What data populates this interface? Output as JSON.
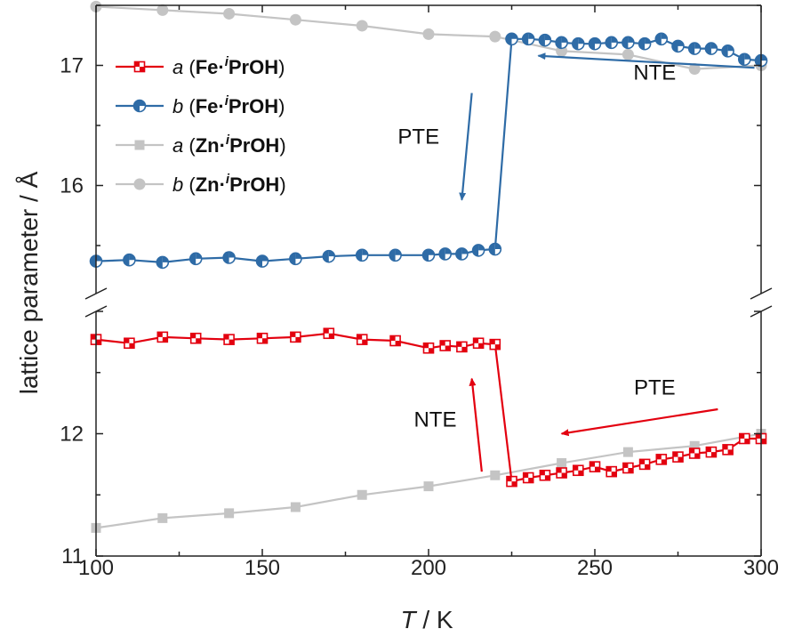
{
  "chart_data": {
    "type": "line",
    "xlabel_symbol": "T",
    "xlabel_unit": " / K",
    "ylabel": "lattice parameter / Å",
    "xlim": [
      100,
      300
    ],
    "xticks": [
      "100",
      "150",
      "200",
      "250",
      "300"
    ],
    "y_axis_break": true,
    "upper_panel": {
      "ylim": [
        15.1,
        17.5
      ],
      "yticks": [
        "16",
        "17"
      ]
    },
    "lower_panel": {
      "ylim": [
        11.0,
        13.0
      ],
      "yticks": [
        "11",
        "12"
      ]
    },
    "colors": {
      "fe_a": "#e3000f",
      "fe_b": "#2e6ba6",
      "zn": "#c4c4c4"
    },
    "legend": [
      {
        "var": "a",
        "metal": "Fe",
        "sup": "i",
        "ligand": "PrOH",
        "marker": "square-split"
      },
      {
        "var": "b",
        "metal": "Fe",
        "sup": "i",
        "ligand": "PrOH",
        "marker": "circle-split"
      },
      {
        "var": "a",
        "metal": "Zn",
        "sup": "i",
        "ligand": "PrOH",
        "marker": "square"
      },
      {
        "var": "b",
        "metal": "Zn",
        "sup": "i",
        "ligand": "PrOH",
        "marker": "circle"
      }
    ],
    "series": [
      {
        "key": "fe_a",
        "panel": "lower",
        "marker": "square-split",
        "x": [
          100,
          110,
          120,
          130,
          140,
          150,
          160,
          170,
          180,
          190,
          200,
          205,
          210,
          215,
          220,
          225,
          230,
          235,
          240,
          245,
          250,
          255,
          260,
          265,
          270,
          275,
          280,
          285,
          290,
          295,
          300
        ],
        "values": [
          12.77,
          12.74,
          12.79,
          12.78,
          12.77,
          12.78,
          12.79,
          12.82,
          12.77,
          12.76,
          12.7,
          12.72,
          12.71,
          12.74,
          12.73,
          11.61,
          11.64,
          11.66,
          11.68,
          11.7,
          11.73,
          11.69,
          11.72,
          11.75,
          11.79,
          11.81,
          11.84,
          11.85,
          11.87,
          11.96,
          11.96
        ]
      },
      {
        "key": "fe_b",
        "panel": "upper",
        "marker": "circle-split",
        "x": [
          100,
          110,
          120,
          130,
          140,
          150,
          160,
          170,
          180,
          190,
          200,
          205,
          210,
          215,
          220,
          225,
          230,
          235,
          240,
          245,
          250,
          255,
          260,
          265,
          270,
          275,
          280,
          285,
          290,
          295,
          300
        ],
        "values": [
          15.37,
          15.38,
          15.36,
          15.39,
          15.4,
          15.37,
          15.39,
          15.41,
          15.42,
          15.42,
          15.42,
          15.43,
          15.43,
          15.46,
          15.47,
          17.22,
          17.22,
          17.21,
          17.19,
          17.18,
          17.18,
          17.19,
          17.19,
          17.18,
          17.22,
          17.16,
          17.14,
          17.14,
          17.12,
          17.05,
          17.04
        ]
      },
      {
        "key": "zn",
        "panel": "lower",
        "marker": "square",
        "x": [
          100,
          120,
          140,
          160,
          180,
          200,
          220,
          240,
          260,
          280,
          300
        ],
        "values": [
          11.23,
          11.31,
          11.35,
          11.4,
          11.5,
          11.57,
          11.66,
          11.76,
          11.85,
          11.9,
          12.0
        ]
      },
      {
        "key": "zn",
        "panel": "upper",
        "marker": "circle",
        "x": [
          100,
          120,
          140,
          160,
          180,
          200,
          220,
          240,
          260,
          280,
          300
        ],
        "values": [
          17.49,
          17.46,
          17.43,
          17.38,
          17.33,
          17.26,
          17.24,
          17.12,
          17.09,
          16.97,
          17.0
        ]
      }
    ],
    "annotations": [
      {
        "text": "NTE",
        "panel": "upper",
        "color": "fe_b",
        "arrow": [
          298,
          16.98,
          233,
          17.08
        ],
        "label": [
          268,
          16.88
        ]
      },
      {
        "text": "PTE",
        "panel": "upper",
        "color": "fe_b",
        "arrow": [
          213,
          16.77,
          210,
          15.88
        ],
        "label": [
          197,
          16.35
        ]
      },
      {
        "text": "PTE",
        "panel": "lower",
        "color": "fe_a",
        "arrow": [
          287,
          12.2,
          240,
          12.0
        ],
        "label": [
          268,
          12.32
        ]
      },
      {
        "text": "NTE",
        "panel": "lower",
        "color": "fe_a",
        "arrow": [
          216,
          11.69,
          213,
          12.45
        ],
        "label": [
          202,
          12.06
        ]
      }
    ]
  }
}
